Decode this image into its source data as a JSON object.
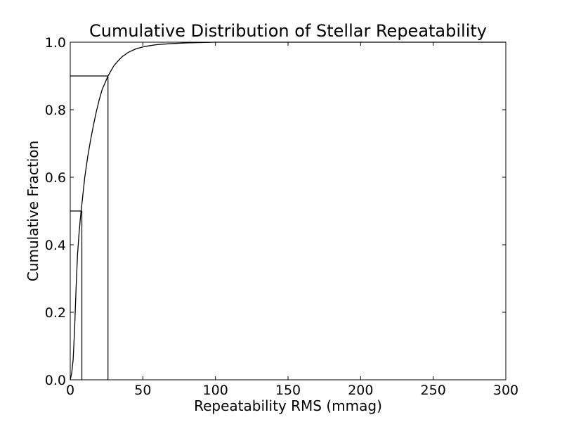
{
  "chart_data": {
    "type": "line",
    "title": "Cumulative Distribution of Stellar Repeatability",
    "xlabel": "Repeatability RMS (mmag)",
    "ylabel": "Cumulative Fraction",
    "xlim": [
      0,
      300
    ],
    "ylim": [
      0.0,
      1.0
    ],
    "xticks": [
      0,
      50,
      100,
      150,
      200,
      250,
      300
    ],
    "xtick_labels": [
      "0",
      "50",
      "100",
      "150",
      "200",
      "250",
      "300"
    ],
    "yticks": [
      0.0,
      0.2,
      0.4,
      0.6,
      0.8,
      1.0
    ],
    "ytick_labels": [
      "0.0",
      "0.2",
      "0.4",
      "0.6",
      "0.8",
      "1.0"
    ],
    "grid": false,
    "series": [
      {
        "x": [
          0,
          1,
          2,
          3,
          4,
          5,
          6,
          7,
          8,
          9,
          10,
          12,
          14,
          16,
          18,
          20,
          22,
          24,
          26,
          28,
          30,
          33,
          36,
          40,
          45,
          50,
          55,
          60,
          70,
          80,
          90,
          100,
          110,
          120,
          300
        ],
        "y": [
          0.0,
          0.02,
          0.06,
          0.15,
          0.27,
          0.37,
          0.43,
          0.48,
          0.52,
          0.56,
          0.6,
          0.66,
          0.71,
          0.755,
          0.795,
          0.83,
          0.86,
          0.88,
          0.9,
          0.915,
          0.93,
          0.945,
          0.958,
          0.97,
          0.98,
          0.986,
          0.99,
          0.993,
          0.996,
          0.998,
          0.999,
          1.0,
          1.0,
          1.0,
          1.0
        ]
      }
    ],
    "markers": [
      {
        "x": 8,
        "y": 0.5
      },
      {
        "x": 26,
        "y": 0.9
      }
    ]
  }
}
